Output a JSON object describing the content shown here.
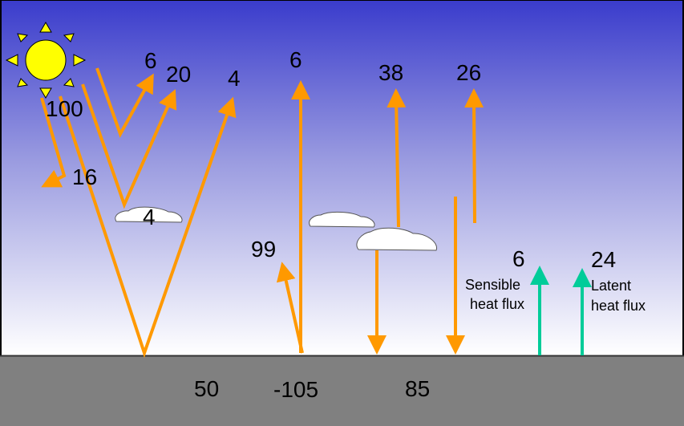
{
  "colors": {
    "sky_top": "#3a3ccc",
    "sky_bottom": "#ffffff",
    "ground": "#808080",
    "shortwave_arrow": "#ff9900",
    "heat_flux_arrow": "#00cc99",
    "sun": "#ffff00"
  },
  "icons": [
    "sun-icon",
    "cloud-icon"
  ],
  "labels": {
    "incoming_solar": "100",
    "atmosphere_absorbed": "16",
    "cloud_absorbed": "4",
    "backscatter_air": "6",
    "reflected_clouds": "20",
    "reflected_surface": "4",
    "outgoing_surface_lw": "6",
    "emitted_by_clouds": "38",
    "emitted_by_atmosphere": "26",
    "surface_emitted": "99",
    "sensible_value": "6",
    "sensible_label_1": "Sensible",
    "sensible_label_2": "heat flux",
    "latent_value": "24",
    "latent_label_1": "Latent",
    "latent_label_2": "heat flux",
    "ground_absorbed_solar": "50",
    "ground_net_longwave": "-105",
    "ground_back_radiation": "85"
  }
}
